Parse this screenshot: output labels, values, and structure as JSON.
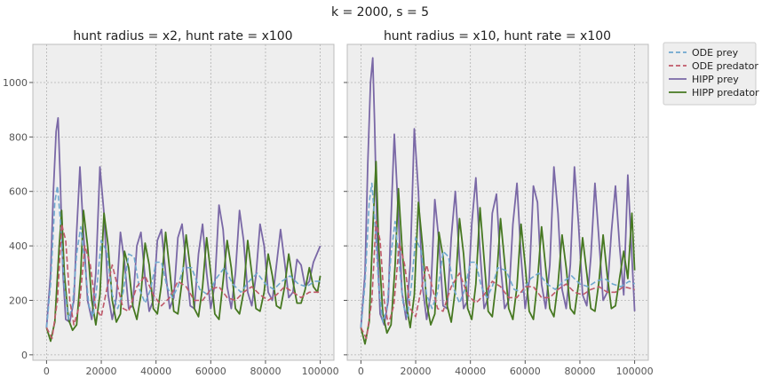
{
  "figure": {
    "suptitle": "k = 2000, s = 5"
  },
  "legend": {
    "placement": "outside-right-top",
    "entries": [
      {
        "label": "ODE prey",
        "color": "#6fa8cf",
        "dash": true
      },
      {
        "label": "ODE predator",
        "color": "#c0596a",
        "dash": true
      },
      {
        "label": "HIPP prey",
        "color": "#7a68a6",
        "dash": false
      },
      {
        "label": "HIPP predator",
        "color": "#467821",
        "dash": false
      }
    ]
  },
  "chart_data": [
    {
      "type": "line",
      "title": "hunt radius = x2, hunt rate = x100",
      "xlim": [
        -5000,
        105000
      ],
      "ylim": [
        -20,
        1140
      ],
      "xticks": [
        0,
        20000,
        40000,
        60000,
        80000,
        100000
      ],
      "yticks": [
        0,
        200,
        400,
        600,
        800,
        1000
      ],
      "grid": true,
      "series": [
        {
          "name": "ODE prey",
          "color": "#6fa8cf",
          "dash": true,
          "x": [
            0,
            1500,
            3000,
            4000,
            5000,
            6500,
            8000,
            9500,
            11000,
            12500,
            14000,
            15500,
            17000,
            18500,
            20000,
            22000,
            24000,
            26000,
            28000,
            30000,
            32000,
            34000,
            36000,
            38000,
            40000,
            42000,
            44000,
            46000,
            48000,
            50000,
            53000,
            56000,
            59000,
            62000,
            65000,
            68000,
            71000,
            74000,
            77000,
            80000,
            83000,
            86000,
            89000,
            92000,
            95000,
            98000,
            100000
          ],
          "y": [
            100,
            260,
            560,
            620,
            500,
            250,
            130,
            180,
            370,
            470,
            330,
            180,
            140,
            260,
            420,
            380,
            220,
            170,
            230,
            370,
            360,
            240,
            190,
            240,
            340,
            340,
            250,
            210,
            250,
            320,
            320,
            240,
            220,
            280,
            320,
            260,
            230,
            270,
            300,
            260,
            240,
            270,
            290,
            260,
            250,
            270,
            270
          ]
        },
        {
          "name": "ODE predator",
          "color": "#c0596a",
          "dash": true,
          "x": [
            0,
            2000,
            4000,
            5500,
            7000,
            8500,
            10000,
            12000,
            14000,
            16000,
            18000,
            20000,
            22000,
            24000,
            26000,
            28000,
            30000,
            33000,
            36000,
            39000,
            42000,
            45000,
            48000,
            51000,
            54000,
            57000,
            60000,
            63000,
            66000,
            69000,
            72000,
            75000,
            78000,
            81000,
            84000,
            87000,
            90000,
            93000,
            96000,
            100000
          ],
          "y": [
            100,
            60,
            200,
            480,
            420,
            200,
            110,
            180,
            400,
            330,
            170,
            140,
            240,
            330,
            250,
            170,
            160,
            250,
            290,
            220,
            180,
            210,
            270,
            250,
            200,
            200,
            240,
            250,
            210,
            200,
            230,
            250,
            220,
            200,
            220,
            250,
            230,
            210,
            230,
            230
          ]
        },
        {
          "name": "HIPP prey",
          "color": "#7a68a6",
          "dash": false,
          "x": [
            0,
            1500,
            2500,
            3500,
            4200,
            5000,
            6000,
            7000,
            8500,
            10000,
            11000,
            12200,
            13500,
            15000,
            16500,
            18000,
            19500,
            21000,
            22500,
            24000,
            25500,
            27000,
            28500,
            30000,
            31500,
            33000,
            34500,
            36000,
            37500,
            39000,
            40500,
            42000,
            43500,
            45000,
            46500,
            48000,
            49500,
            51000,
            52500,
            54000,
            55500,
            57000,
            58500,
            60000,
            61500,
            63000,
            64500,
            66000,
            67500,
            69000,
            70500,
            72000,
            73500,
            75000,
            76500,
            78000,
            79500,
            81000,
            82500,
            84000,
            85500,
            87000,
            88500,
            90000,
            91500,
            93000,
            94500,
            96000,
            97500,
            100000
          ],
          "y": [
            100,
            300,
            600,
            820,
            870,
            650,
            300,
            130,
            120,
            200,
            450,
            690,
            450,
            200,
            130,
            300,
            690,
            520,
            220,
            130,
            210,
            450,
            340,
            170,
            180,
            400,
            450,
            280,
            160,
            200,
            420,
            460,
            300,
            170,
            210,
            430,
            480,
            330,
            180,
            170,
            370,
            480,
            300,
            170,
            260,
            550,
            460,
            250,
            170,
            300,
            530,
            420,
            230,
            180,
            290,
            480,
            400,
            230,
            200,
            330,
            460,
            340,
            210,
            230,
            350,
            330,
            250,
            270,
            340,
            400
          ]
        },
        {
          "name": "HIPP predator",
          "color": "#467821",
          "dash": false,
          "x": [
            0,
            1500,
            3000,
            4500,
            5500,
            6500,
            8000,
            9500,
            11000,
            12500,
            13500,
            15000,
            16500,
            18000,
            19500,
            21000,
            22500,
            24000,
            25500,
            27000,
            28500,
            30000,
            31500,
            33000,
            34500,
            36000,
            37500,
            39000,
            40500,
            42000,
            43500,
            45000,
            46500,
            48000,
            49500,
            51000,
            52500,
            54000,
            55500,
            57000,
            58500,
            60000,
            61500,
            63000,
            64500,
            66000,
            67500,
            69000,
            70500,
            72000,
            73500,
            75000,
            76500,
            78000,
            79500,
            81000,
            82500,
            84000,
            85500,
            87000,
            88500,
            90000,
            91500,
            93000,
            94500,
            96000,
            97500,
            99000,
            100000
          ],
          "y": [
            100,
            50,
            120,
            380,
            530,
            300,
            130,
            90,
            110,
            300,
            530,
            400,
            200,
            110,
            220,
            520,
            400,
            200,
            120,
            150,
            380,
            320,
            180,
            130,
            220,
            410,
            330,
            170,
            150,
            260,
            450,
            310,
            160,
            150,
            270,
            440,
            320,
            170,
            140,
            250,
            430,
            300,
            150,
            130,
            270,
            420,
            320,
            170,
            150,
            230,
            420,
            300,
            170,
            160,
            230,
            370,
            290,
            180,
            170,
            250,
            370,
            270,
            190,
            190,
            240,
            320,
            250,
            230,
            290
          ]
        }
      ]
    },
    {
      "type": "line",
      "title": "hunt radius = x10, hunt rate = x100",
      "xlim": [
        -5000,
        105000
      ],
      "ylim": [
        -20,
        1140
      ],
      "xticks": [
        0,
        20000,
        40000,
        60000,
        80000,
        100000
      ],
      "yticks": [
        0,
        200,
        400,
        600,
        800,
        1000
      ],
      "grid": true,
      "series": [
        {
          "name": "ODE prey",
          "color": "#6fa8cf",
          "dash": true,
          "x": [
            0,
            1500,
            3000,
            4000,
            5000,
            6500,
            8000,
            9500,
            11000,
            12500,
            14000,
            15500,
            17000,
            18500,
            20000,
            22000,
            24000,
            26000,
            28000,
            30000,
            32000,
            34000,
            36000,
            38000,
            40000,
            42000,
            44000,
            46000,
            48000,
            50000,
            53000,
            56000,
            59000,
            62000,
            65000,
            68000,
            71000,
            74000,
            77000,
            80000,
            83000,
            86000,
            89000,
            92000,
            95000,
            98000,
            100000
          ],
          "y": [
            100,
            260,
            560,
            630,
            500,
            250,
            120,
            170,
            370,
            490,
            330,
            180,
            140,
            260,
            430,
            380,
            220,
            170,
            230,
            380,
            360,
            240,
            190,
            240,
            340,
            340,
            250,
            210,
            250,
            320,
            310,
            240,
            230,
            280,
            300,
            260,
            240,
            270,
            290,
            260,
            250,
            270,
            280,
            260,
            250,
            270,
            260
          ]
        },
        {
          "name": "ODE predator",
          "color": "#c0596a",
          "dash": true,
          "x": [
            0,
            2000,
            4000,
            5500,
            7000,
            8500,
            10000,
            12000,
            14000,
            16000,
            18000,
            20000,
            22000,
            24000,
            26000,
            28000,
            30000,
            33000,
            36000,
            39000,
            42000,
            45000,
            48000,
            51000,
            54000,
            57000,
            60000,
            63000,
            66000,
            69000,
            72000,
            75000,
            78000,
            81000,
            84000,
            87000,
            90000,
            93000,
            96000,
            100000
          ],
          "y": [
            100,
            60,
            200,
            490,
            420,
            200,
            110,
            180,
            410,
            330,
            170,
            140,
            240,
            330,
            250,
            170,
            160,
            250,
            300,
            220,
            190,
            220,
            270,
            250,
            210,
            210,
            250,
            250,
            210,
            210,
            240,
            260,
            230,
            220,
            240,
            250,
            230,
            230,
            250,
            240
          ]
        },
        {
          "name": "HIPP prey",
          "color": "#7a68a6",
          "dash": false,
          "x": [
            0,
            1500,
            2500,
            3500,
            4300,
            5000,
            6000,
            7000,
            8500,
            10000,
            11000,
            12200,
            13500,
            15000,
            16500,
            18000,
            19500,
            21000,
            22500,
            24000,
            25500,
            27000,
            28500,
            30000,
            31500,
            33000,
            34500,
            36000,
            37500,
            39000,
            40500,
            42000,
            43500,
            45000,
            46500,
            48000,
            49500,
            51000,
            52500,
            54000,
            55500,
            57000,
            58500,
            60000,
            61500,
            63000,
            64500,
            66000,
            67500,
            69000,
            70500,
            72000,
            73500,
            75000,
            76500,
            78000,
            79500,
            81000,
            82500,
            84000,
            85500,
            87000,
            88500,
            90000,
            91500,
            93000,
            94500,
            96000,
            97500,
            100000
          ],
          "y": [
            100,
            300,
            700,
            1000,
            1090,
            850,
            400,
            150,
            110,
            200,
            500,
            810,
            550,
            230,
            130,
            330,
            830,
            600,
            250,
            130,
            220,
            570,
            420,
            180,
            170,
            430,
            600,
            350,
            170,
            200,
            480,
            650,
            380,
            170,
            210,
            520,
            590,
            330,
            170,
            200,
            480,
            630,
            360,
            170,
            270,
            620,
            560,
            260,
            170,
            330,
            690,
            520,
            240,
            170,
            330,
            690,
            480,
            220,
            180,
            360,
            630,
            420,
            200,
            230,
            450,
            620,
            400,
            220,
            660,
            160
          ]
        },
        {
          "name": "HIPP predator",
          "color": "#467821",
          "dash": false,
          "x": [
            0,
            1500,
            3000,
            4500,
            5500,
            6500,
            8000,
            9500,
            11000,
            12500,
            13700,
            15000,
            16500,
            18000,
            19500,
            21000,
            22500,
            24000,
            25500,
            27000,
            28500,
            30000,
            31500,
            33000,
            34500,
            36000,
            37500,
            39000,
            40500,
            42000,
            43500,
            45000,
            46500,
            48000,
            49500,
            51000,
            52500,
            54000,
            55500,
            57000,
            58500,
            60000,
            61500,
            63000,
            64500,
            66000,
            67500,
            69000,
            70500,
            72000,
            73500,
            75000,
            76500,
            78000,
            79500,
            81000,
            82500,
            84000,
            85500,
            87000,
            88500,
            90000,
            91500,
            93000,
            94500,
            96000,
            97500,
            99000,
            100000
          ],
          "y": [
            100,
            40,
            120,
            500,
            710,
            400,
            150,
            80,
            110,
            330,
            610,
            400,
            190,
            100,
            220,
            560,
            400,
            190,
            110,
            150,
            450,
            360,
            180,
            120,
            240,
            500,
            370,
            170,
            130,
            260,
            540,
            350,
            160,
            140,
            270,
            500,
            340,
            170,
            130,
            250,
            480,
            330,
            160,
            130,
            270,
            470,
            320,
            170,
            140,
            260,
            440,
            320,
            170,
            150,
            260,
            430,
            300,
            170,
            160,
            270,
            440,
            290,
            170,
            180,
            280,
            380,
            280,
            520,
            310
          ]
        }
      ]
    }
  ]
}
